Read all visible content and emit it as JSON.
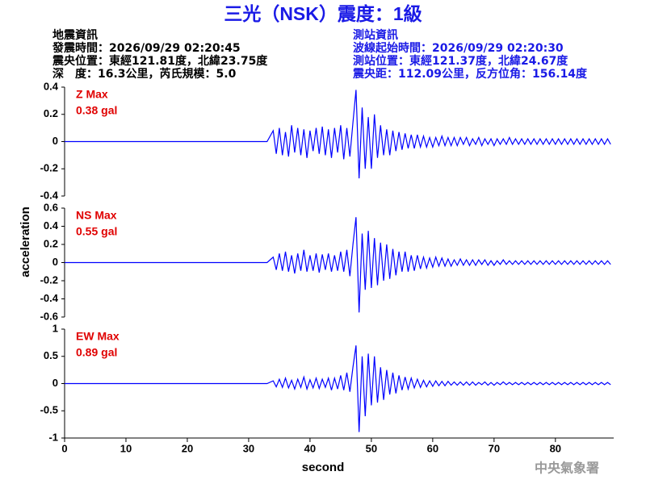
{
  "header": {
    "title": "三光（NSK）震度：1級",
    "left": [
      "地震資訊",
      "發震時間：2026/09/29 02:20:45",
      "震央位置：東經121.81度，北緯23.75度",
      "深　度：16.3公里，芮氏規模：5.0"
    ],
    "right": [
      "測站資訊",
      "波線起始時間：2026/09/29 02:20:30",
      "測站位置：東經121.37度，北緯24.67度",
      "震央距：112.09公里，反方位角：156.14度"
    ],
    "footer": "中央氣象署"
  },
  "axes": {
    "xlabel": "second",
    "ylabel": "acceleration"
  },
  "chart_data": [
    {
      "type": "line",
      "annotations": [
        "Z Max",
        "0.38 gal"
      ],
      "annotation_color": "#e00000",
      "color": "#0000ff",
      "xlim": [
        0,
        89.5
      ],
      "ylim": [
        -0.4,
        0.4
      ],
      "yticks": [
        -0.4,
        -0.2,
        0,
        0.2,
        0.4
      ],
      "x": [
        0,
        3,
        6,
        9,
        12,
        15,
        18,
        21,
        24,
        27,
        30,
        33,
        34,
        34.5,
        35,
        35.5,
        36,
        36.5,
        37,
        37.5,
        38,
        38.5,
        39,
        39.5,
        40,
        40.5,
        41,
        41.5,
        42,
        42.5,
        43,
        43.5,
        44,
        44.5,
        45,
        45.5,
        46,
        46.5,
        47,
        47.5,
        48,
        48.5,
        49,
        49.5,
        50,
        50.5,
        51,
        51.5,
        52,
        52.5,
        53,
        53.5,
        54,
        54.5,
        55,
        55.5,
        56,
        56.5,
        57,
        57.5,
        58,
        58.5,
        59,
        59.5,
        60,
        60.5,
        61,
        61.5,
        62,
        62.5,
        63,
        63.5,
        64,
        64.5,
        65,
        65.5,
        66,
        66.5,
        67,
        67.5,
        68,
        68.5,
        69,
        69.5,
        70,
        70.5,
        71,
        71.5,
        72,
        72.5,
        73,
        73.5,
        74,
        74.5,
        75,
        75.5,
        76,
        76.5,
        77,
        77.5,
        78,
        78.5,
        79,
        79.5,
        80,
        80.5,
        81,
        81.5,
        82,
        82.5,
        83,
        83.5,
        84,
        84.5,
        85,
        85.5,
        86,
        86.5,
        87,
        87.5,
        88,
        88.5,
        89
      ],
      "values": [
        0,
        0,
        0,
        0,
        0,
        0,
        0,
        0,
        0,
        0,
        0,
        0,
        0.08,
        -0.09,
        0.1,
        -0.1,
        0.07,
        -0.11,
        0.12,
        -0.08,
        0.1,
        -0.1,
        0.09,
        -0.12,
        0.08,
        -0.07,
        0.1,
        -0.09,
        0.11,
        -0.1,
        0.09,
        -0.12,
        0.1,
        -0.08,
        0.12,
        -0.13,
        0.1,
        -0.11,
        0.14,
        0.38,
        -0.27,
        0.25,
        -0.2,
        0.18,
        -0.2,
        0.2,
        -0.12,
        0.12,
        -0.1,
        0.09,
        -0.1,
        0.08,
        -0.07,
        0.07,
        -0.06,
        0.06,
        -0.05,
        0.05,
        -0.05,
        0.05,
        -0.04,
        0.04,
        -0.04,
        0.03,
        -0.04,
        0.03,
        -0.03,
        0.04,
        -0.03,
        0.03,
        -0.03,
        0.03,
        -0.03,
        0.03,
        -0.02,
        0.03,
        -0.03,
        0.02,
        -0.02,
        0.03,
        -0.03,
        0.02,
        -0.02,
        0.02,
        -0.03,
        0.02,
        -0.02,
        0.02,
        -0.02,
        0.03,
        -0.02,
        0.02,
        -0.02,
        0.02,
        -0.02,
        0.02,
        -0.02,
        0.02,
        -0.02,
        0.02,
        -0.02,
        0.02,
        -0.02,
        0.02,
        -0.02,
        0.02,
        -0.02,
        0.02,
        -0.02,
        0.02,
        -0.02,
        0.02,
        -0.02,
        0.02,
        -0.02,
        0.02,
        -0.02,
        0.02,
        -0.02,
        0.02,
        -0.02,
        0.02,
        -0.02
      ]
    },
    {
      "type": "line",
      "annotations": [
        "NS Max",
        "0.55 gal"
      ],
      "annotation_color": "#e00000",
      "color": "#0000ff",
      "xlim": [
        0,
        89.5
      ],
      "ylim": [
        -0.6,
        0.6
      ],
      "yticks": [
        -0.6,
        -0.4,
        -0.2,
        0,
        0.2,
        0.4,
        0.6
      ],
      "x": [
        0,
        3,
        6,
        9,
        12,
        15,
        18,
        21,
        24,
        27,
        30,
        33,
        34,
        34.5,
        35,
        35.5,
        36,
        36.5,
        37,
        37.5,
        38,
        38.5,
        39,
        39.5,
        40,
        40.5,
        41,
        41.5,
        42,
        42.5,
        43,
        43.5,
        44,
        44.5,
        45,
        45.5,
        46,
        46.5,
        47,
        47.5,
        48,
        48.5,
        49,
        49.5,
        50,
        50.5,
        51,
        51.5,
        52,
        52.5,
        53,
        53.5,
        54,
        54.5,
        55,
        55.5,
        56,
        56.5,
        57,
        57.5,
        58,
        58.5,
        59,
        59.5,
        60,
        60.5,
        61,
        61.5,
        62,
        62.5,
        63,
        63.5,
        64,
        64.5,
        65,
        65.5,
        66,
        66.5,
        67,
        67.5,
        68,
        68.5,
        69,
        69.5,
        70,
        70.5,
        71,
        71.5,
        72,
        72.5,
        73,
        73.5,
        74,
        74.5,
        75,
        75.5,
        76,
        76.5,
        77,
        77.5,
        78,
        78.5,
        79,
        79.5,
        80,
        80.5,
        81,
        81.5,
        82,
        82.5,
        83,
        83.5,
        84,
        84.5,
        85,
        85.5,
        86,
        86.5,
        87,
        87.5,
        88,
        88.5,
        89
      ],
      "values": [
        0,
        0,
        0,
        0,
        0,
        0,
        0,
        0,
        0,
        0,
        0,
        0,
        0.06,
        -0.08,
        0.1,
        -0.09,
        0.12,
        -0.1,
        0.08,
        -0.12,
        0.1,
        -0.09,
        0.14,
        -0.1,
        0.08,
        -0.09,
        0.1,
        -0.11,
        0.09,
        -0.08,
        0.1,
        -0.1,
        0.08,
        -0.09,
        0.12,
        -0.1,
        0.14,
        -0.15,
        0.2,
        0.5,
        -0.55,
        0.32,
        -0.3,
        0.35,
        -0.28,
        0.27,
        -0.25,
        0.22,
        -0.2,
        0.2,
        -0.18,
        0.15,
        -0.14,
        0.12,
        -0.1,
        0.12,
        -0.1,
        0.08,
        -0.09,
        0.08,
        -0.07,
        0.06,
        -0.06,
        0.05,
        -0.05,
        0.06,
        -0.04,
        0.05,
        -0.04,
        0.04,
        -0.04,
        0.03,
        -0.03,
        0.04,
        -0.03,
        0.03,
        -0.03,
        0.03,
        -0.03,
        0.03,
        -0.02,
        0.03,
        -0.03,
        0.02,
        -0.03,
        0.02,
        -0.02,
        0.03,
        -0.02,
        0.02,
        -0.02,
        0.02,
        -0.02,
        0.02,
        -0.02,
        0.02,
        -0.02,
        0.02,
        -0.02,
        0.02,
        -0.02,
        0.02,
        -0.02,
        0.02,
        -0.02,
        0.02,
        -0.02,
        0.02,
        -0.02,
        0.02,
        -0.02,
        0.02,
        -0.02,
        0.02,
        -0.02,
        0.02,
        -0.02,
        0.02,
        -0.02,
        0.02,
        -0.02,
        0.02,
        -0.02
      ]
    },
    {
      "type": "line",
      "annotations": [
        "EW Max",
        "0.89 gal"
      ],
      "annotation_color": "#e00000",
      "color": "#0000ff",
      "xlim": [
        0,
        89.5
      ],
      "ylim": [
        -1,
        1
      ],
      "yticks": [
        -1,
        -0.5,
        0,
        0.5,
        1
      ],
      "xticks": [
        0,
        10,
        20,
        30,
        40,
        50,
        60,
        70,
        80
      ],
      "x": [
        0,
        3,
        6,
        9,
        12,
        15,
        18,
        21,
        24,
        27,
        30,
        33,
        34,
        34.5,
        35,
        35.5,
        36,
        36.5,
        37,
        37.5,
        38,
        38.5,
        39,
        39.5,
        40,
        40.5,
        41,
        41.5,
        42,
        42.5,
        43,
        43.5,
        44,
        44.5,
        45,
        45.5,
        46,
        46.5,
        47,
        47.5,
        48,
        48.5,
        49,
        49.5,
        50,
        50.5,
        51,
        51.5,
        52,
        52.5,
        53,
        53.5,
        54,
        54.5,
        55,
        55.5,
        56,
        56.5,
        57,
        57.5,
        58,
        58.5,
        59,
        59.5,
        60,
        60.5,
        61,
        61.5,
        62,
        62.5,
        63,
        63.5,
        64,
        64.5,
        65,
        65.5,
        66,
        66.5,
        67,
        67.5,
        68,
        68.5,
        69,
        69.5,
        70,
        70.5,
        71,
        71.5,
        72,
        72.5,
        73,
        73.5,
        74,
        74.5,
        75,
        75.5,
        76,
        76.5,
        77,
        77.5,
        78,
        78.5,
        79,
        79.5,
        80,
        80.5,
        81,
        81.5,
        82,
        82.5,
        83,
        83.5,
        84,
        84.5,
        85,
        85.5,
        86,
        86.5,
        87,
        87.5,
        88,
        88.5,
        89
      ],
      "values": [
        0,
        0,
        0,
        0,
        0,
        0,
        0,
        0,
        0,
        0,
        0,
        0,
        0.05,
        -0.06,
        0.08,
        -0.07,
        0.1,
        -0.08,
        0.06,
        -0.1,
        0.08,
        -0.07,
        0.12,
        -0.1,
        0.07,
        -0.08,
        0.1,
        -0.09,
        0.08,
        -0.07,
        0.1,
        -0.12,
        0.1,
        -0.1,
        0.15,
        -0.12,
        0.2,
        -0.15,
        0.3,
        0.7,
        -0.89,
        0.5,
        -0.6,
        0.55,
        -0.4,
        0.5,
        -0.35,
        0.3,
        -0.3,
        0.25,
        -0.2,
        0.2,
        -0.18,
        0.15,
        -0.12,
        0.12,
        -0.1,
        0.1,
        -0.08,
        0.08,
        -0.07,
        0.06,
        -0.06,
        0.05,
        -0.05,
        0.05,
        -0.04,
        0.04,
        -0.04,
        0.04,
        -0.03,
        0.03,
        -0.03,
        0.03,
        -0.03,
        0.03,
        -0.03,
        0.03,
        -0.03,
        0.02,
        -0.02,
        0.03,
        -0.03,
        0.02,
        -0.03,
        0.02,
        -0.02,
        0.03,
        -0.02,
        0.02,
        -0.02,
        0.02,
        -0.02,
        0.02,
        -0.02,
        0.02,
        -0.02,
        0.02,
        -0.02,
        0.02,
        -0.02,
        0.02,
        -0.02,
        0.02,
        -0.02,
        0.02,
        -0.02,
        0.02,
        -0.02,
        0.02,
        -0.02,
        0.02,
        -0.02,
        0.02,
        -0.02,
        0.02,
        -0.02,
        0.02,
        -0.02,
        0.02,
        -0.02,
        0.02,
        -0.02
      ]
    }
  ]
}
